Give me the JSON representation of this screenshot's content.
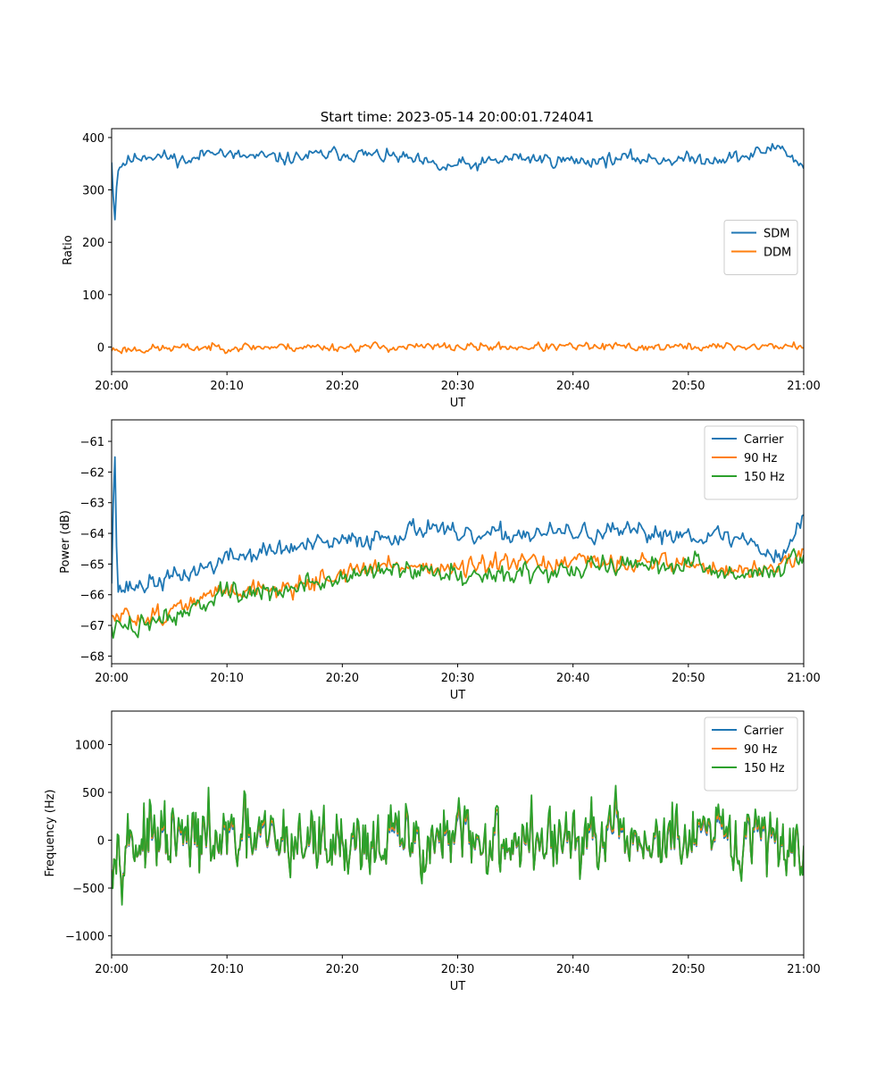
{
  "title": "Start time: 2023-05-14 20:00:01.724041",
  "colors": {
    "blue": "#1f77b4",
    "orange": "#ff7f0e",
    "green": "#2ca02c"
  },
  "chart_data": [
    {
      "type": "line",
      "ylabel": "Ratio",
      "xlabel": "UT",
      "xticklabels": [
        "20:00",
        "20:10",
        "20:20",
        "20:30",
        "20:40",
        "20:50",
        "21:00"
      ],
      "xlim": [
        "20:00",
        "21:00"
      ],
      "yticks": [
        0,
        100,
        200,
        300,
        400
      ],
      "ylim": [
        -47,
        417
      ],
      "legend": "center-right",
      "series": [
        {
          "name": "SDM",
          "color": "#1f77b4",
          "x": [
            "20:00",
            "20:00:15",
            "20:00:30",
            "20:01",
            "20:03",
            "20:05",
            "20:07",
            "20:09",
            "20:10",
            "20:15",
            "20:20",
            "20:25",
            "20:29",
            "20:30",
            "20:31",
            "20:35",
            "20:40",
            "20:45",
            "20:50",
            "20:55",
            "20:58",
            "21:00"
          ],
          "y": [
            360,
            236,
            340,
            352,
            368,
            362,
            355,
            382,
            365,
            360,
            370,
            362,
            340,
            350,
            345,
            362,
            355,
            360,
            358,
            363,
            385,
            340
          ],
          "noise": 14,
          "seed": 11,
          "pts": 420
        },
        {
          "name": "DDM",
          "color": "#ff7f0e",
          "x": [
            "20:00",
            "20:10",
            "20:20",
            "20:30",
            "20:40",
            "20:50",
            "21:00"
          ],
          "y": [
            -5,
            0,
            0,
            0,
            0,
            0,
            2
          ],
          "noise": 9,
          "seed": 23,
          "pts": 420
        }
      ]
    },
    {
      "type": "line",
      "ylabel": "Power (dB)",
      "xlabel": "UT",
      "xticklabels": [
        "20:00",
        "20:10",
        "20:20",
        "20:30",
        "20:40",
        "20:50",
        "21:00"
      ],
      "xlim": [
        "20:00",
        "21:00"
      ],
      "yticks": [
        -61,
        -62,
        -63,
        -64,
        -65,
        -66,
        -67,
        -68
      ],
      "ylim": [
        -68.25,
        -60.3
      ],
      "legend": "top-right",
      "series": [
        {
          "name": "Carrier",
          "color": "#1f77b4",
          "x": [
            "20:00",
            "20:00:15",
            "20:00:30",
            "20:01",
            "20:05",
            "20:09",
            "20:10",
            "20:15",
            "20:20",
            "20:25",
            "20:28",
            "20:30",
            "20:35",
            "20:40",
            "20:45",
            "20:50",
            "20:55",
            "20:58",
            "21:00"
          ],
          "y": [
            -65.5,
            -60.5,
            -65.8,
            -65.8,
            -65.5,
            -65.0,
            -64.8,
            -64.5,
            -64.3,
            -64.0,
            -63.7,
            -64.2,
            -64.0,
            -64.0,
            -64.0,
            -64.0,
            -64.2,
            -64.8,
            -63.5
          ],
          "noise": 0.35,
          "seed": 37,
          "pts": 420
        },
        {
          "name": "90 Hz",
          "color": "#ff7f0e",
          "x": [
            "20:00",
            "20:05",
            "20:10",
            "20:15",
            "20:20",
            "20:25",
            "20:30",
            "20:35",
            "20:40",
            "20:45",
            "20:50",
            "20:55",
            "21:00"
          ],
          "y": [
            -66.8,
            -66.6,
            -65.8,
            -65.8,
            -65.3,
            -65.0,
            -65.2,
            -65.0,
            -65.0,
            -64.9,
            -65.0,
            -65.3,
            -64.8
          ],
          "noise": 0.35,
          "seed": 51,
          "pts": 420
        },
        {
          "name": "150 Hz",
          "color": "#2ca02c",
          "x": [
            "20:00",
            "20:05",
            "20:10",
            "20:15",
            "20:20",
            "20:25",
            "20:30",
            "20:35",
            "20:40",
            "20:45",
            "20:50",
            "20:55",
            "21:00"
          ],
          "y": [
            -67.2,
            -66.7,
            -66.0,
            -65.9,
            -65.4,
            -65.2,
            -65.3,
            -65.3,
            -65.2,
            -65.0,
            -65.0,
            -65.4,
            -64.8
          ],
          "noise": 0.38,
          "seed": 73,
          "pts": 420
        }
      ]
    },
    {
      "type": "line",
      "ylabel": "Frequency (Hz)",
      "xlabel": "UT",
      "xticklabels": [
        "20:00",
        "20:10",
        "20:20",
        "20:30",
        "20:40",
        "20:50",
        "21:00"
      ],
      "xlim": [
        "20:00",
        "21:00"
      ],
      "yticks": [
        1000,
        500,
        0,
        -500,
        -1000
      ],
      "ylim": [
        -1200,
        1350
      ],
      "legend": "top-right",
      "series": [
        {
          "name": "Carrier",
          "color": "#1f77b4",
          "x": [
            "20:00",
            "21:00"
          ],
          "y": [
            -30,
            -30
          ],
          "noise": 420,
          "seed": 97,
          "pts": 600,
          "offset": -60
        },
        {
          "name": "90 Hz",
          "color": "#ff7f0e",
          "x": [
            "20:00",
            "21:00"
          ],
          "y": [
            -15,
            -15
          ],
          "noise": 420,
          "seed": 97,
          "pts": 600,
          "offset": -30
        },
        {
          "name": "150 Hz",
          "color": "#2ca02c",
          "x": [
            "20:00",
            "21:00"
          ],
          "y": [
            0,
            0
          ],
          "noise": 420,
          "seed": 97,
          "pts": 600,
          "offset": 0
        }
      ]
    }
  ]
}
